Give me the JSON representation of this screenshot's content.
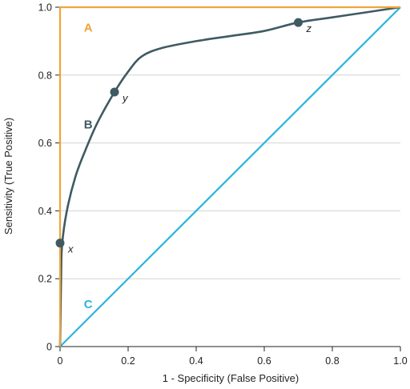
{
  "chart_data": {
    "type": "line",
    "xlabel": "1 - Specificity (False Positive)",
    "ylabel": "Sensitivity (True Positive)",
    "xlim": [
      0,
      1
    ],
    "ylim": [
      0,
      1
    ],
    "xticks": [
      "0",
      "0.2",
      "0.4",
      "0.6",
      "0.8",
      "1.0"
    ],
    "yticks": [
      "0",
      "0.2",
      "0.4",
      "0.6",
      "0.8",
      "1.0"
    ],
    "grid": true,
    "colors": {
      "A": "#EFA43A",
      "B": "#3F5A63",
      "C": "#2BB3DF",
      "grid": "#D3D3D3",
      "axis": "#222222"
    },
    "series": [
      {
        "name": "A",
        "label_pos": {
          "x": 0.07,
          "y": 0.94
        },
        "points": [
          [
            0,
            0
          ],
          [
            0,
            1.0
          ],
          [
            1.0,
            1.0
          ]
        ]
      },
      {
        "name": "B",
        "label_pos": {
          "x": 0.07,
          "y": 0.655
        },
        "points": [
          [
            0,
            0
          ],
          [
            0.003,
            0.2
          ],
          [
            0.006,
            0.3
          ],
          [
            0.02,
            0.4
          ],
          [
            0.045,
            0.5
          ],
          [
            0.075,
            0.58
          ],
          [
            0.11,
            0.66
          ],
          [
            0.16,
            0.75
          ],
          [
            0.2,
            0.81
          ],
          [
            0.24,
            0.855
          ],
          [
            0.3,
            0.88
          ],
          [
            0.4,
            0.9
          ],
          [
            0.5,
            0.915
          ],
          [
            0.6,
            0.93
          ],
          [
            0.7,
            0.955
          ],
          [
            0.8,
            0.97
          ],
          [
            0.9,
            0.985
          ],
          [
            1.0,
            1.0
          ]
        ]
      },
      {
        "name": "C",
        "label_pos": {
          "x": 0.07,
          "y": 0.125
        },
        "points": [
          [
            0,
            0
          ],
          [
            1.0,
            1.0
          ]
        ]
      }
    ],
    "highlight_points": [
      {
        "label": "x",
        "x": 0.0,
        "y": 0.305
      },
      {
        "label": "y",
        "x": 0.16,
        "y": 0.75
      },
      {
        "label": "z",
        "x": 0.7,
        "y": 0.955
      }
    ]
  }
}
